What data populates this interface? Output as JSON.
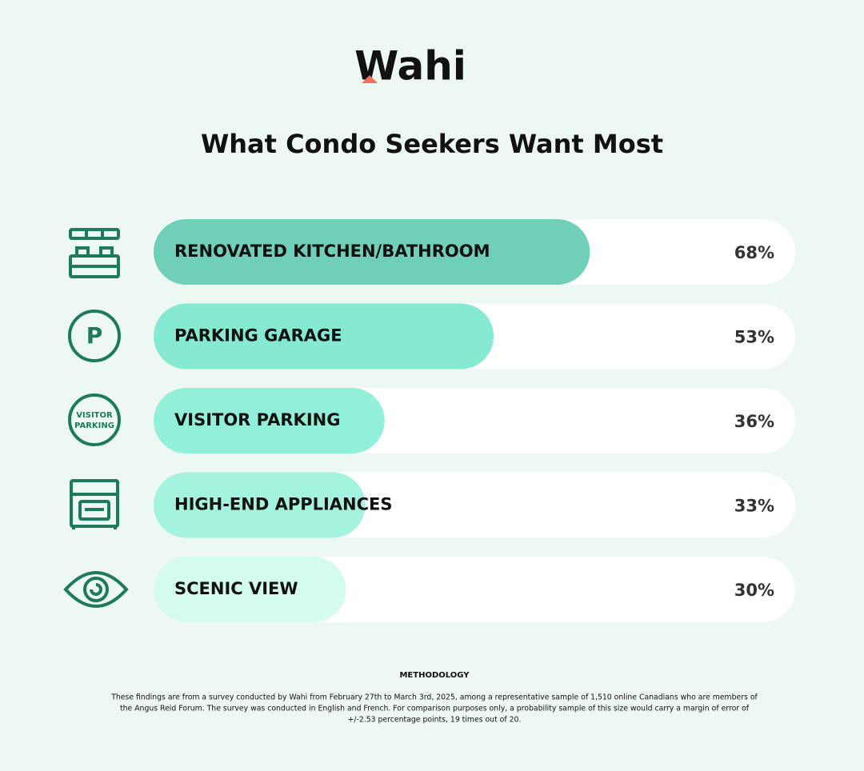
{
  "logo": "Wahi",
  "icons": {
    "parking": "P",
    "visitor_parking": [
      "VISITOR",
      "PARKING"
    ]
  },
  "chart_data": {
    "type": "bar",
    "orientation": "horizontal",
    "title": "What Condo Seekers Want Most",
    "categories": [
      "RENOVATED KITCHEN/BATHROOM",
      "PARKING GARAGE",
      "VISITOR PARKING",
      "HIGH-END APPLIANCES",
      "SCENIC VIEW"
    ],
    "values": [
      68,
      53,
      36,
      33,
      30
    ],
    "value_labels": [
      "68%",
      "53%",
      "36%",
      "33%",
      "30%"
    ],
    "colors": [
      "#6fcfb7",
      "#86e9d1",
      "#93f0d8",
      "#a3f3de",
      "#d3fbee"
    ],
    "xlim": [
      0,
      100
    ]
  },
  "methodology": {
    "heading": "METHODOLOGY",
    "lines": [
      "These findings are from a survey conducted by Wahi from February 27th to March 3rd, 2025, among a representative sample of 1,510 online Canadians who are members of",
      "the Angus Reid Forum. The survey was conducted in English and French. For comparison purposes only, a probability sample of this size would carry a margin of error of",
      "+/-2.53 percentage points, 19 times out of 20."
    ]
  }
}
